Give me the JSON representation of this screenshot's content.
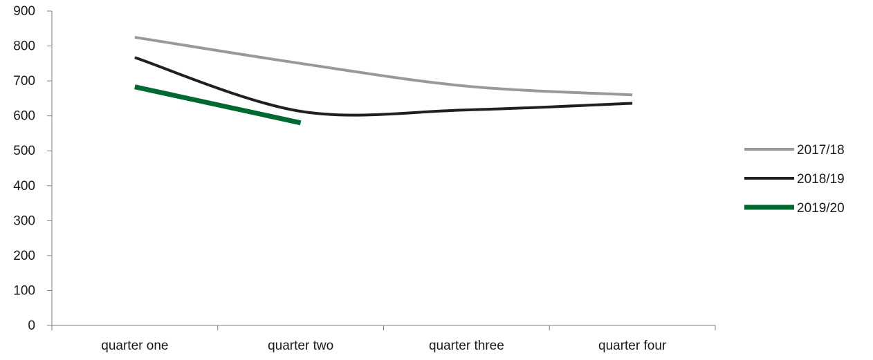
{
  "chart_data": {
    "type": "line",
    "categories": [
      "quarter one",
      "quarter two",
      "quarter three",
      "quarter four"
    ],
    "ylim": [
      0,
      900
    ],
    "yticks": [
      "0",
      "100",
      "200",
      "300",
      "400",
      "500",
      "600",
      "700",
      "800",
      "900"
    ],
    "series": [
      {
        "name": "2017/18",
        "color": "#999999",
        "values": [
          825,
          750,
          685,
          660
        ]
      },
      {
        "name": "2018/19",
        "color": "#231f20",
        "values": [
          767,
          613,
          617,
          636
        ]
      },
      {
        "name": "2019/20",
        "color": "#00692f",
        "values": [
          683,
          580,
          null,
          null
        ]
      }
    ],
    "smooth": true,
    "grid": false,
    "legend": "right"
  }
}
